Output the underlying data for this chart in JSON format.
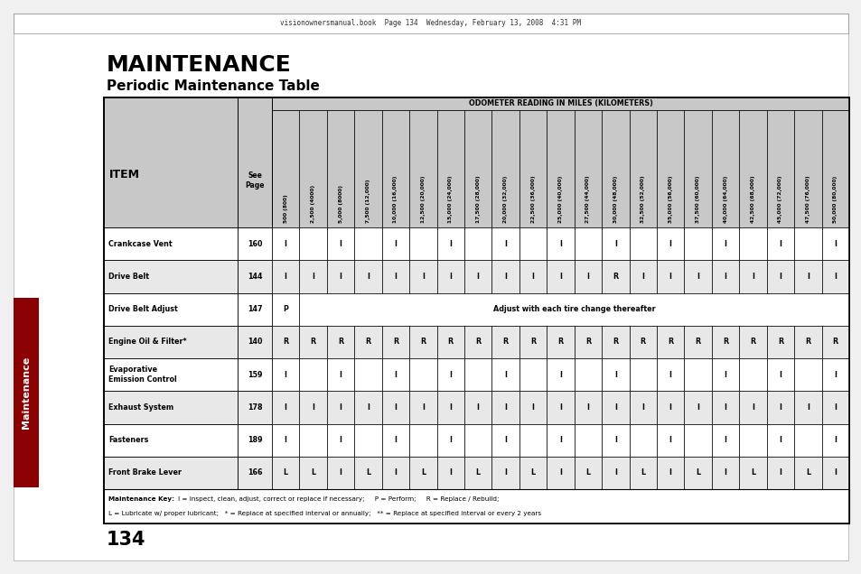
{
  "title": "MAINTENANCE",
  "subtitle": "Periodic Maintenance Table",
  "page_number": "134",
  "odometer_header": "ODOMETER READING IN MILES (KILOMETERS)",
  "col_headers": [
    "500 (800)",
    "2,500 (4000)",
    "5,000 (8000)",
    "7,500 (12,000)",
    "10,000 (16,000)",
    "12,500 (20,000)",
    "15,000 (24,000)",
    "17,500 (28,000)",
    "20,000 (32,000)",
    "22,500 (36,000)",
    "25,000 (40,000)",
    "27,500 (44,000)",
    "30,000 (48,000)",
    "32,500 (52,000)",
    "35,000 (56,000)",
    "37,500 (60,000)",
    "40,000 (64,000)",
    "42,500 (68,000)",
    "45,000 (72,000)",
    "47,500 (76,000)",
    "50,000 (80,000)"
  ],
  "rows": [
    {
      "item": "Crankcase Vent",
      "page": "160",
      "values": [
        "I",
        "",
        "I",
        "",
        "I",
        "",
        "I",
        "",
        "I",
        "",
        "I",
        "",
        "I",
        "",
        "I",
        "",
        "I",
        "",
        "I",
        "",
        "I"
      ]
    },
    {
      "item": "Drive Belt",
      "page": "144",
      "values": [
        "I",
        "I",
        "I",
        "I",
        "I",
        "I",
        "I",
        "I",
        "I",
        "I",
        "I",
        "I",
        "R",
        "I",
        "I",
        "I",
        "I",
        "I",
        "I",
        "I",
        "I"
      ]
    },
    {
      "item": "Drive Belt Adjust",
      "page": "147",
      "span_text": "Adjust with each tire change thereafter",
      "first_val": "P",
      "values": []
    },
    {
      "item": "Engine Oil & Filter*",
      "page": "140",
      "values": [
        "R",
        "R",
        "R",
        "R",
        "R",
        "R",
        "R",
        "R",
        "R",
        "R",
        "R",
        "R",
        "R",
        "R",
        "R",
        "R",
        "R",
        "R",
        "R",
        "R",
        "R"
      ]
    },
    {
      "item": "Evaporative\nEmission Control",
      "page": "159",
      "values": [
        "I",
        "",
        "I",
        "",
        "I",
        "",
        "I",
        "",
        "I",
        "",
        "I",
        "",
        "I",
        "",
        "I",
        "",
        "I",
        "",
        "I",
        "",
        "I"
      ]
    },
    {
      "item": "Exhaust System",
      "page": "178",
      "values": [
        "I",
        "I",
        "I",
        "I",
        "I",
        "I",
        "I",
        "I",
        "I",
        "I",
        "I",
        "I",
        "I",
        "I",
        "I",
        "I",
        "I",
        "I",
        "I",
        "I",
        "I"
      ]
    },
    {
      "item": "Fasteners",
      "page": "189",
      "values": [
        "I",
        "",
        "I",
        "",
        "I",
        "",
        "I",
        "",
        "I",
        "",
        "I",
        "",
        "I",
        "",
        "I",
        "",
        "I",
        "",
        "I",
        "",
        "I"
      ]
    },
    {
      "item": "Front Brake Lever",
      "page": "166",
      "values": [
        "L",
        "L",
        "I",
        "L",
        "I",
        "L",
        "I",
        "L",
        "I",
        "L",
        "I",
        "L",
        "I",
        "L",
        "I",
        "L",
        "I",
        "L",
        "I",
        "L",
        "I"
      ]
    }
  ],
  "footnote_bold": "Maintenance Key:",
  "footnote_line1": "    I = Inspect, clean, adjust, correct or replace if necessary;     P = Perform;     R = Replace / Rebuild;",
  "footnote_line2": "L = Lubricate w/ proper lubricant;   * = Replace at specified interval or annually;   ** = Replace at specified interval or every 2 years",
  "header_text": "visionownersmanual.book  Page 134  Wednesday, February 13, 2008  4:31 PM",
  "sidebar_text": "Maintenance",
  "bg_color": "#ffffff",
  "page_bg": "#f5f5f5",
  "header_bg": "#b8b8b8",
  "col_header_bg": "#c8c8c8",
  "sidebar_red": "#8B0000",
  "table_border": "#000000"
}
